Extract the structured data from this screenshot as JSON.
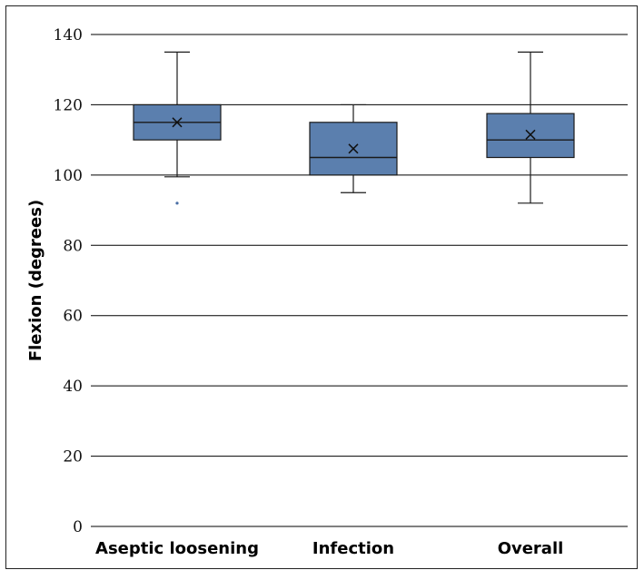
{
  "chart_data": {
    "type": "box",
    "title": "",
    "xlabel": "",
    "ylabel": "Flexion (degrees)",
    "ylim": [
      0,
      140
    ],
    "yticks": [
      0,
      20,
      40,
      60,
      80,
      100,
      120,
      140
    ],
    "grid": true,
    "categories": [
      "Aseptic loosening",
      "Infection",
      "Overall"
    ],
    "boxes": [
      {
        "category": "Aseptic loosening",
        "min": 99.5,
        "q1": 110,
        "median": 115,
        "q3": 120,
        "max": 135,
        "mean": 115,
        "outliers": [
          92
        ]
      },
      {
        "category": "Infection",
        "min": 95,
        "q1": 100,
        "median": 105,
        "q3": 115,
        "max": 120,
        "mean": 107.5,
        "outliers": []
      },
      {
        "category": "Overall",
        "min": 92,
        "q1": 105,
        "median": 110,
        "q3": 117.5,
        "max": 135,
        "mean": 111.5,
        "outliers": []
      }
    ],
    "colors": {
      "box_fill": "#5b7fae",
      "box_stroke": "#1a1a1a",
      "outlier": "#4a6fa5",
      "grid": "#000000"
    }
  }
}
